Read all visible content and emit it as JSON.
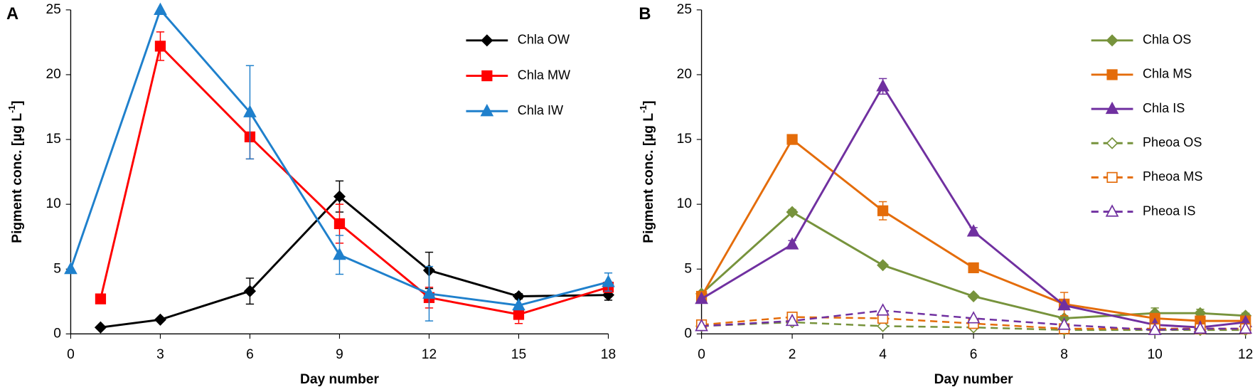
{
  "chart_data": [
    {
      "type": "line",
      "panel_label": "A",
      "xlabel": "Day number",
      "ylabel": [
        "Pigment conc. [µg L",
        "-1",
        "]"
      ],
      "xlim": [
        0,
        18
      ],
      "xticks": [
        0,
        3,
        6,
        9,
        12,
        15,
        18
      ],
      "ylim": [
        0,
        25
      ],
      "yticks": [
        0,
        5,
        10,
        15,
        20,
        25
      ],
      "grid": false,
      "legend": "upper right",
      "series": [
        {
          "name": "Chla OW",
          "color": "#000000",
          "marker": "diamond",
          "filled": true,
          "dashed": false,
          "x": [
            1,
            3,
            6,
            9,
            12,
            15,
            18
          ],
          "values": [
            0.5,
            1.1,
            3.3,
            10.6,
            4.9,
            2.9,
            3.0
          ],
          "errors": [
            null,
            null,
            1.0,
            1.2,
            1.4,
            0.2,
            0.4
          ]
        },
        {
          "name": "Chla MW",
          "color": "#ff0000",
          "marker": "square",
          "filled": true,
          "dashed": false,
          "x": [
            1,
            3,
            6,
            9,
            12,
            15,
            18
          ],
          "values": [
            2.7,
            22.2,
            15.2,
            8.5,
            2.8,
            1.5,
            3.6
          ],
          "errors": [
            null,
            1.1,
            1.7,
            1.5,
            0.8,
            0.7,
            0.4
          ]
        },
        {
          "name": "Chla IW",
          "color": "#1f80cc",
          "marker": "triangle",
          "filled": true,
          "dashed": false,
          "x": [
            0,
            3,
            6,
            9,
            12,
            15,
            18
          ],
          "values": [
            5.0,
            25.0,
            17.1,
            6.1,
            3.1,
            2.2,
            4.0
          ],
          "errors": [
            null,
            null,
            3.6,
            1.5,
            2.1,
            null,
            0.7
          ]
        }
      ]
    },
    {
      "type": "line",
      "panel_label": "B",
      "xlabel": "Day number",
      "ylabel": [
        "Pigment conc. [µg L",
        "-1",
        "]"
      ],
      "xlim": [
        0,
        12
      ],
      "xticks": [
        0,
        2,
        4,
        6,
        8,
        10,
        12
      ],
      "ylim": [
        0,
        25
      ],
      "yticks": [
        0,
        5,
        10,
        15,
        20,
        25
      ],
      "grid": false,
      "legend": "upper right",
      "series": [
        {
          "name": "Chla OS",
          "color": "#77933c",
          "marker": "diamond",
          "filled": true,
          "dashed": false,
          "x": [
            0,
            2,
            4,
            6,
            8,
            10,
            11,
            12
          ],
          "values": [
            3.1,
            9.4,
            5.3,
            2.9,
            1.2,
            1.6,
            1.6,
            1.4
          ],
          "errors": [
            null,
            0.2,
            null,
            null,
            null,
            0.4,
            0.3,
            0.2
          ]
        },
        {
          "name": "Chla MS",
          "color": "#e46c0a",
          "marker": "square",
          "filled": true,
          "dashed": false,
          "x": [
            0,
            2,
            4,
            6,
            8,
            10,
            11,
            12
          ],
          "values": [
            2.9,
            15.0,
            9.5,
            5.1,
            2.3,
            1.2,
            1.0,
            1.0
          ],
          "errors": [
            null,
            0.2,
            0.7,
            null,
            0.9,
            null,
            null,
            null
          ]
        },
        {
          "name": "Chla IS",
          "color": "#7030a0",
          "marker": "triangle",
          "filled": true,
          "dashed": false,
          "x": [
            0,
            2,
            4,
            6,
            8,
            10,
            11,
            12
          ],
          "values": [
            2.7,
            6.9,
            19.1,
            7.9,
            2.2,
            0.7,
            0.5,
            0.9
          ],
          "errors": [
            null,
            0.3,
            0.6,
            0.3,
            null,
            null,
            null,
            null
          ]
        },
        {
          "name": "Pheoa OS",
          "color": "#77933c",
          "marker": "diamond",
          "filled": false,
          "dashed": true,
          "x": [
            0,
            2,
            4,
            6,
            8,
            10,
            11,
            12
          ],
          "values": [
            0.6,
            0.9,
            0.6,
            0.5,
            0.3,
            0.3,
            0.3,
            0.3
          ],
          "errors": [
            null,
            null,
            null,
            null,
            null,
            null,
            null,
            null
          ]
        },
        {
          "name": "Pheoa MS",
          "color": "#e46c0a",
          "marker": "square",
          "filled": false,
          "dashed": true,
          "x": [
            0,
            2,
            4,
            6,
            8,
            10,
            11,
            12
          ],
          "values": [
            0.7,
            1.3,
            1.2,
            0.8,
            0.4,
            0.4,
            0.4,
            0.4
          ],
          "errors": [
            null,
            null,
            null,
            null,
            null,
            null,
            null,
            null
          ]
        },
        {
          "name": "Pheoa IS",
          "color": "#7030a0",
          "marker": "triangle",
          "filled": false,
          "dashed": true,
          "x": [
            0,
            2,
            4,
            6,
            8,
            10,
            11,
            12
          ],
          "values": [
            0.6,
            1.0,
            1.8,
            1.2,
            0.7,
            0.3,
            0.4,
            0.4
          ],
          "errors": [
            null,
            null,
            null,
            null,
            null,
            null,
            null,
            null
          ]
        }
      ]
    }
  ]
}
